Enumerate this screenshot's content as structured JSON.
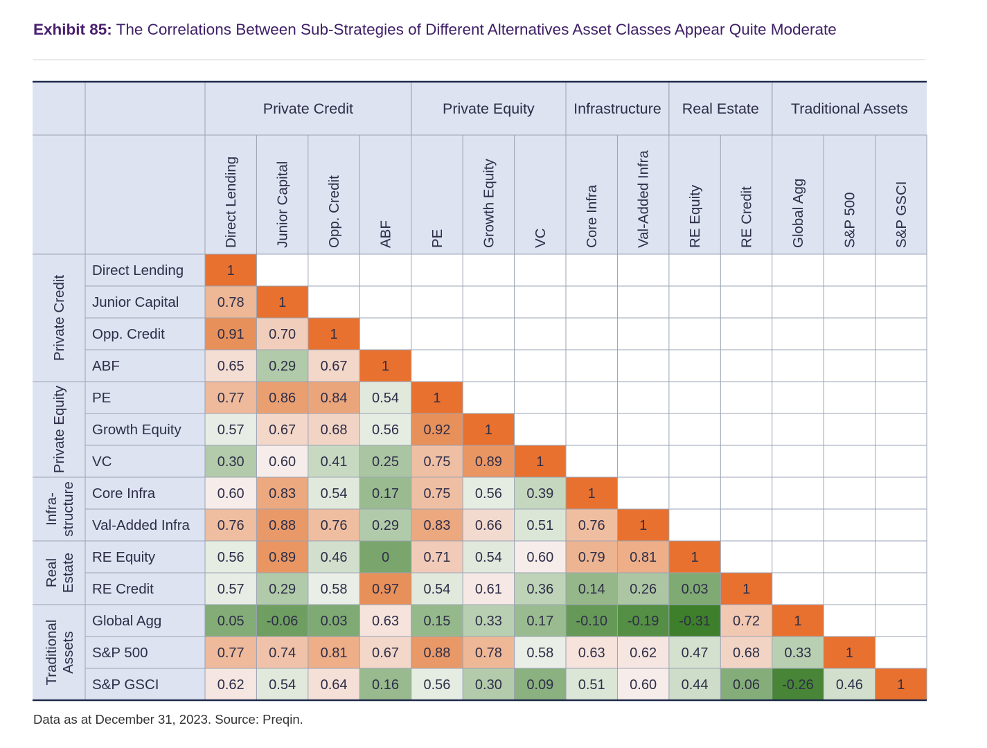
{
  "title": {
    "exhibit": "Exhibit 85:",
    "text": "The Correlations Between Sub-Strategies of Different Alternatives Asset Classes Appear Quite Moderate"
  },
  "source": "Data as at December 31, 2023. Source: Preqin.",
  "colors": {
    "diagonal": "#e8712f",
    "high_orange": "#e8905a",
    "low_green": "#3e7f2c",
    "header_fill": "#dde3f1",
    "grid": "#9aa3b4",
    "border": "#1e2a4a"
  },
  "chart_data": {
    "type": "heatmap",
    "title": "",
    "column_groups": [
      {
        "name": "Private Credit",
        "span": 4
      },
      {
        "name": "Private Equity",
        "span": 3
      },
      {
        "name": "Infrastructure",
        "span": 2
      },
      {
        "name": "Real Estate",
        "span": 2
      },
      {
        "name": "Traditional Assets",
        "span": 3
      }
    ],
    "row_groups": [
      {
        "lines": [
          "Private Credit"
        ],
        "span": 4
      },
      {
        "lines": [
          "Private Equity"
        ],
        "span": 3
      },
      {
        "lines": [
          "Infra-",
          "structure"
        ],
        "span": 2
      },
      {
        "lines": [
          "Real",
          "Estate"
        ],
        "span": 2
      },
      {
        "lines": [
          "Traditional",
          "Assets"
        ],
        "span": 3
      }
    ],
    "labels": [
      "Direct Lending",
      "Junior Capital",
      "Opp. Credit",
      "ABF",
      "PE",
      "Growth Equity",
      "VC",
      "Core Infra",
      "Val-Added Infra",
      "RE Equity",
      "RE Credit",
      "Global Agg",
      "S&P 500",
      "S&P GSCI"
    ],
    "values": [
      [
        "1"
      ],
      [
        "0.78",
        "1"
      ],
      [
        "0.91",
        "0.70",
        "1"
      ],
      [
        "0.65",
        "0.29",
        "0.67",
        "1"
      ],
      [
        "0.77",
        "0.86",
        "0.84",
        "0.54",
        "1"
      ],
      [
        "0.57",
        "0.67",
        "0.68",
        "0.56",
        "0.92",
        "1"
      ],
      [
        "0.30",
        "0.60",
        "0.41",
        "0.25",
        "0.75",
        "0.89",
        "1"
      ],
      [
        "0.60",
        "0.83",
        "0.54",
        "0.17",
        "0.75",
        "0.56",
        "0.39",
        "1"
      ],
      [
        "0.76",
        "0.88",
        "0.76",
        "0.29",
        "0.83",
        "0.66",
        "0.51",
        "0.76",
        "1"
      ],
      [
        "0.56",
        "0.89",
        "0.46",
        "0",
        "0.71",
        "0.54",
        "0.60",
        "0.79",
        "0.81",
        "1"
      ],
      [
        "0.57",
        "0.29",
        "0.58",
        "0.97",
        "0.54",
        "0.61",
        "0.36",
        "0.14",
        "0.26",
        "0.03",
        "1"
      ],
      [
        "0.05",
        "-0.06",
        "0.03",
        "0.63",
        "0.15",
        "0.33",
        "0.17",
        "-0.10",
        "-0.19",
        "-0.31",
        "0.72",
        "1"
      ],
      [
        "0.77",
        "0.74",
        "0.81",
        "0.67",
        "0.88",
        "0.78",
        "0.58",
        "0.63",
        "0.62",
        "0.47",
        "0.68",
        "0.33",
        "1"
      ],
      [
        "0.62",
        "0.54",
        "0.64",
        "0.16",
        "0.56",
        "0.30",
        "0.09",
        "0.51",
        "0.60",
        "0.44",
        "0.06",
        "-0.26",
        "0.46",
        "1"
      ]
    ]
  }
}
